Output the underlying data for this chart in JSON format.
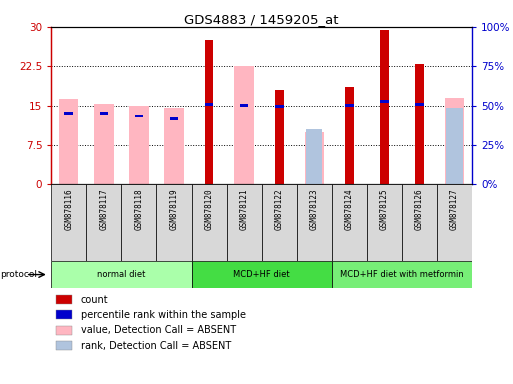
{
  "title": "GDS4883 / 1459205_at",
  "samples": [
    "GSM878116",
    "GSM878117",
    "GSM878118",
    "GSM878119",
    "GSM878120",
    "GSM878121",
    "GSM878122",
    "GSM878123",
    "GSM878124",
    "GSM878125",
    "GSM878126",
    "GSM878127"
  ],
  "count_values": [
    null,
    null,
    null,
    null,
    27.5,
    null,
    18.0,
    null,
    18.5,
    29.5,
    23.0,
    null
  ],
  "percentile_values": [
    13.5,
    13.5,
    13.0,
    12.5,
    15.2,
    15.0,
    14.8,
    null,
    15.0,
    15.8,
    15.2,
    null
  ],
  "value_absent": [
    16.2,
    15.4,
    15.0,
    14.5,
    null,
    22.5,
    null,
    10.0,
    null,
    null,
    null,
    16.5
  ],
  "rank_absent": [
    null,
    null,
    null,
    null,
    null,
    null,
    null,
    10.5,
    null,
    null,
    null,
    14.5
  ],
  "ylim_left": [
    0,
    30
  ],
  "ylim_right": [
    0,
    100
  ],
  "yticks_left": [
    0,
    7.5,
    15,
    22.5,
    30
  ],
  "yticks_right": [
    0,
    25,
    50,
    75,
    100
  ],
  "ytick_labels_left": [
    "0",
    "7.5",
    "15",
    "22.5",
    "30"
  ],
  "ytick_labels_right": [
    "0%",
    "25%",
    "50%",
    "75%",
    "100%"
  ],
  "count_color": "#CC0000",
  "percentile_color": "#0000CC",
  "value_absent_color": "#FFB6C1",
  "rank_absent_color": "#B0C4DE",
  "protocol_groups": [
    {
      "label": "normal diet",
      "start": 0,
      "end": 3,
      "color": "#aaffaa"
    },
    {
      "label": "MCD+HF diet",
      "start": 4,
      "end": 7,
      "color": "#44dd44"
    },
    {
      "label": "MCD+HF diet with metformin",
      "start": 8,
      "end": 11,
      "color": "#77ee77"
    }
  ],
  "legend_items": [
    {
      "label": "count",
      "color": "#CC0000"
    },
    {
      "label": "percentile rank within the sample",
      "color": "#0000CC"
    },
    {
      "label": "value, Detection Call = ABSENT",
      "color": "#FFB6C1"
    },
    {
      "label": "rank, Detection Call = ABSENT",
      "color": "#B0C4DE"
    }
  ]
}
